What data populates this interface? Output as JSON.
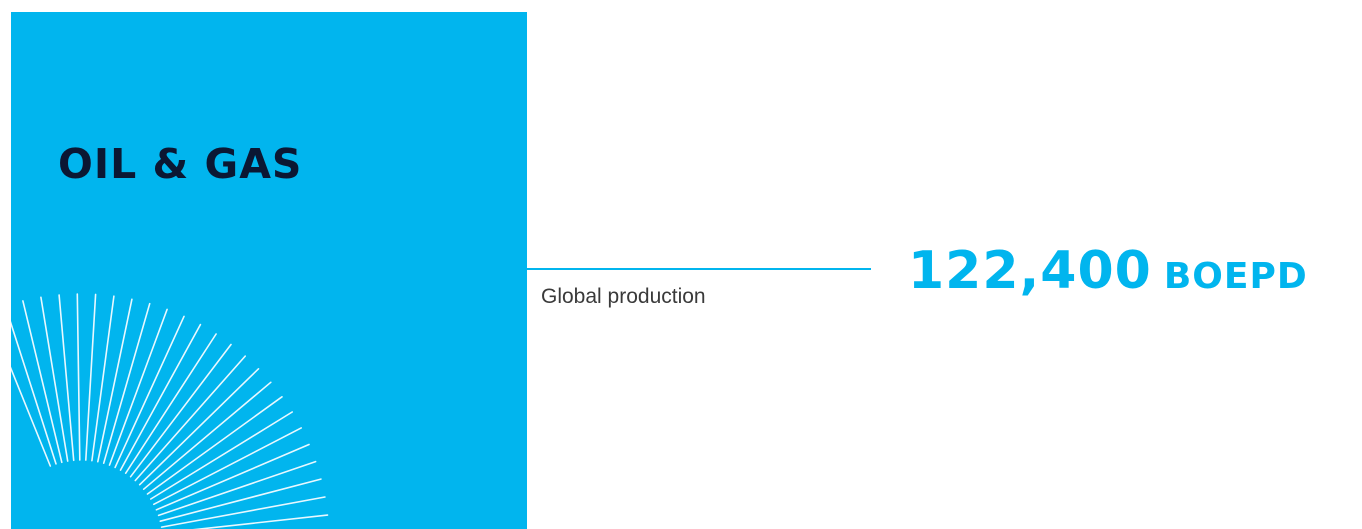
{
  "panel": {
    "title": "OIL & GAS",
    "background_color": "#01b5ee",
    "title_color": "#0b1733",
    "decoration": "sunburst-rays"
  },
  "metric": {
    "label": "Global production",
    "value": "122,400",
    "unit": "BOEPD",
    "accent_color": "#01b5ee"
  }
}
